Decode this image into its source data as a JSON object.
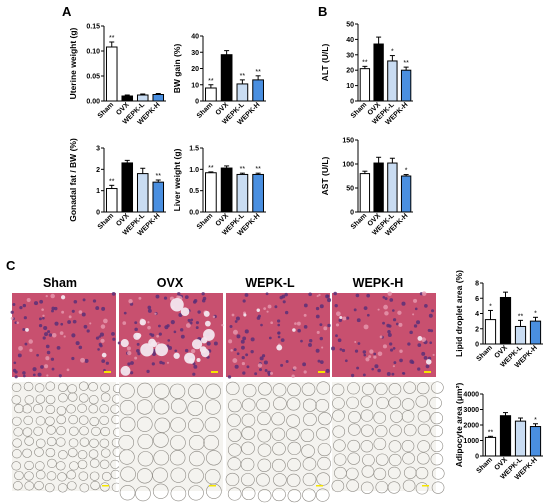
{
  "panel_labels": [
    "A",
    "B",
    "C"
  ],
  "group_colors": [
    "#ffffff",
    "#000000",
    "#c9dcf2",
    "#4a8fe0"
  ],
  "micrograph_headers": [
    "Sham",
    "OVX",
    "WEPK-L",
    "WEPK-H"
  ],
  "chart_data": [
    {
      "id": "uterine",
      "type": "bar",
      "panel": "A",
      "ylabel": "Uterine weight (g)",
      "categories": [
        "Sham",
        "OVX",
        "WEPK-L",
        "WEPK-H"
      ],
      "values": [
        0.108,
        0.01,
        0.012,
        0.013
      ],
      "errors": [
        0.01,
        0.002,
        0.002,
        0.002
      ],
      "annotations": [
        "**",
        "",
        "",
        ""
      ],
      "ylim": [
        0,
        0.15
      ],
      "ticks": [
        0.0,
        0.05,
        0.1,
        0.15
      ],
      "tick_labels": [
        "0.00",
        "0.05",
        "0.10",
        "0.15"
      ]
    },
    {
      "id": "bwgain",
      "type": "bar",
      "panel": "A",
      "ylabel": "BW gain (%)",
      "categories": [
        "Sham",
        "OVX",
        "WEPK-L",
        "WEPK-H"
      ],
      "values": [
        8,
        28.5,
        10.5,
        13
      ],
      "errors": [
        2,
        2.5,
        2.5,
        2.5
      ],
      "annotations": [
        "**",
        "",
        "**",
        "**"
      ],
      "ylim": [
        0,
        40
      ],
      "ticks": [
        0,
        10,
        20,
        30,
        40
      ],
      "tick_labels": [
        "0",
        "10",
        "20",
        "30",
        "40"
      ]
    },
    {
      "id": "alt",
      "type": "bar",
      "panel": "B",
      "ylabel": "ALT (U/L)",
      "categories": [
        "Sham",
        "OVX",
        "WEPK-L",
        "WEPK-H"
      ],
      "values": [
        21,
        37,
        26,
        20
      ],
      "errors": [
        1.5,
        4.5,
        3.5,
        2
      ],
      "annotations": [
        "**",
        "",
        "*",
        "**"
      ],
      "ylim": [
        0,
        50
      ],
      "ticks": [
        0,
        10,
        20,
        30,
        40,
        50
      ],
      "tick_labels": [
        "0",
        "10",
        "20",
        "30",
        "40",
        "50"
      ]
    },
    {
      "id": "gonadal",
      "type": "bar",
      "panel": "A",
      "ylabel": "Gonadal fat / BW (%)",
      "categories": [
        "Sham",
        "OVX",
        "WEPK-L",
        "WEPK-H"
      ],
      "values": [
        1.1,
        2.3,
        1.8,
        1.4
      ],
      "errors": [
        0.15,
        0.12,
        0.25,
        0.1
      ],
      "annotations": [
        "**",
        "",
        "",
        "**"
      ],
      "ylim": [
        0,
        3
      ],
      "ticks": [
        0,
        1,
        2,
        3
      ],
      "tick_labels": [
        "0",
        "1",
        "2",
        "3"
      ]
    },
    {
      "id": "liver",
      "type": "bar",
      "panel": "A",
      "ylabel": "Liver weight (g)",
      "categories": [
        "Sham",
        "OVX",
        "WEPK-L",
        "WEPK-H"
      ],
      "values": [
        0.92,
        1.03,
        0.88,
        0.88
      ],
      "errors": [
        0.02,
        0.05,
        0.03,
        0.03
      ],
      "annotations": [
        "**",
        "",
        "**",
        "**"
      ],
      "ylim": [
        0,
        1.5
      ],
      "ticks": [
        0,
        0.5,
        1.0,
        1.5
      ],
      "tick_labels": [
        "0.0",
        "0.5",
        "1.0",
        "1.5"
      ]
    },
    {
      "id": "ast",
      "type": "bar",
      "panel": "B",
      "ylabel": "AST (U/L)",
      "categories": [
        "Sham",
        "OVX",
        "WEPK-L",
        "WEPK-H"
      ],
      "values": [
        80,
        102,
        102,
        75
      ],
      "errors": [
        5,
        12,
        10,
        3
      ],
      "annotations": [
        "",
        "",
        "",
        "*"
      ],
      "ylim": [
        0,
        150
      ],
      "ticks": [
        0,
        50,
        100,
        150
      ],
      "tick_labels": [
        "0",
        "50",
        "100",
        "150"
      ]
    },
    {
      "id": "lipid",
      "type": "bar",
      "panel": "C",
      "ylabel": "Lipid droplet area (%)",
      "categories": [
        "Sham",
        "OVX",
        "WEPK-L",
        "WEPK-H"
      ],
      "values": [
        3.2,
        6.1,
        2.3,
        3.0
      ],
      "errors": [
        1.2,
        0.7,
        0.8,
        0.5
      ],
      "annotations": [
        "*",
        "",
        "**",
        "*"
      ],
      "ylim": [
        0,
        8
      ],
      "ticks": [
        0,
        2,
        4,
        6,
        8
      ],
      "tick_labels": [
        "0",
        "2",
        "4",
        "6",
        "8"
      ]
    },
    {
      "id": "adipo",
      "type": "bar",
      "panel": "C",
      "ylabel": "Adipocyte area (μm²)",
      "categories": [
        "Sham",
        "OVX",
        "WEPK-L",
        "WEPK-H"
      ],
      "values": [
        1200,
        2600,
        2250,
        1900
      ],
      "errors": [
        70,
        200,
        200,
        180
      ],
      "annotations": [
        "**",
        "",
        "",
        "*"
      ],
      "ylim": [
        0,
        4000
      ],
      "ticks": [
        0,
        1000,
        2000,
        3000,
        4000
      ],
      "tick_labels": [
        "0",
        "1000",
        "2000",
        "3000",
        "4000"
      ]
    }
  ]
}
